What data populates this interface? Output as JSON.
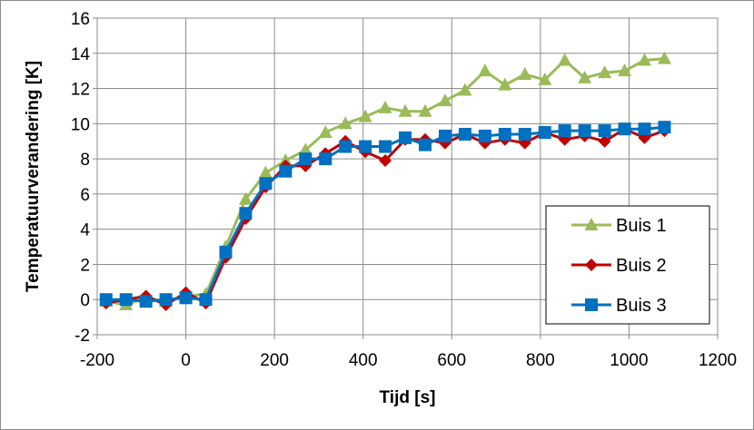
{
  "chart_data": {
    "type": "line",
    "title": "",
    "xlabel": "Tijd [s]",
    "ylabel": "Temperatuurverandering [K]",
    "xlim": [
      -200,
      1200
    ],
    "ylim": [
      -2,
      16
    ],
    "xticks": [
      -200,
      0,
      200,
      400,
      600,
      800,
      1000,
      1200
    ],
    "yticks": [
      -2,
      0,
      2,
      4,
      6,
      8,
      10,
      12,
      14,
      16
    ],
    "grid": true,
    "legend_position": "bottom-right",
    "series": [
      {
        "name": "Buis 1",
        "color": "#9bbb59",
        "marker": "triangle",
        "x": [
          -180,
          -135,
          -90,
          -45,
          0,
          45,
          90,
          135,
          180,
          225,
          270,
          315,
          360,
          405,
          450,
          495,
          540,
          585,
          630,
          675,
          720,
          765,
          810,
          855,
          900,
          945,
          990,
          1035,
          1080
        ],
        "y": [
          -0.1,
          -0.3,
          0.1,
          -0.1,
          0.2,
          0.3,
          3.0,
          5.7,
          7.2,
          7.9,
          8.5,
          9.5,
          10.0,
          10.4,
          10.9,
          10.7,
          10.7,
          11.3,
          11.9,
          13.0,
          12.2,
          12.8,
          12.5,
          13.6,
          12.6,
          12.9,
          13.0,
          13.6,
          13.7
        ]
      },
      {
        "name": "Buis 2",
        "color": "#c00000",
        "marker": "diamond",
        "x": [
          -180,
          -135,
          -90,
          -45,
          0,
          45,
          90,
          135,
          180,
          225,
          270,
          315,
          360,
          405,
          450,
          495,
          540,
          585,
          630,
          675,
          720,
          765,
          810,
          855,
          900,
          945,
          990,
          1035,
          1080
        ],
        "y": [
          -0.2,
          0.0,
          0.2,
          -0.3,
          0.4,
          -0.2,
          2.4,
          4.6,
          6.4,
          7.6,
          7.6,
          8.3,
          9.0,
          8.4,
          7.9,
          9.1,
          9.1,
          8.9,
          9.4,
          8.9,
          9.1,
          8.9,
          9.5,
          9.1,
          9.3,
          9.0,
          9.7,
          9.2,
          9.6
        ]
      },
      {
        "name": "Buis 3",
        "color": "#0070c0",
        "marker": "square",
        "x": [
          -180,
          -135,
          -90,
          -45,
          0,
          45,
          90,
          135,
          180,
          225,
          270,
          315,
          360,
          405,
          450,
          495,
          540,
          585,
          630,
          675,
          720,
          765,
          810,
          855,
          900,
          945,
          990,
          1035,
          1080
        ],
        "y": [
          0.0,
          0.0,
          -0.1,
          0.0,
          0.1,
          0.0,
          2.7,
          4.9,
          6.6,
          7.3,
          8.0,
          8.0,
          8.7,
          8.7,
          8.7,
          9.2,
          8.8,
          9.3,
          9.4,
          9.3,
          9.4,
          9.4,
          9.5,
          9.6,
          9.6,
          9.6,
          9.7,
          9.7,
          9.8
        ]
      }
    ]
  }
}
